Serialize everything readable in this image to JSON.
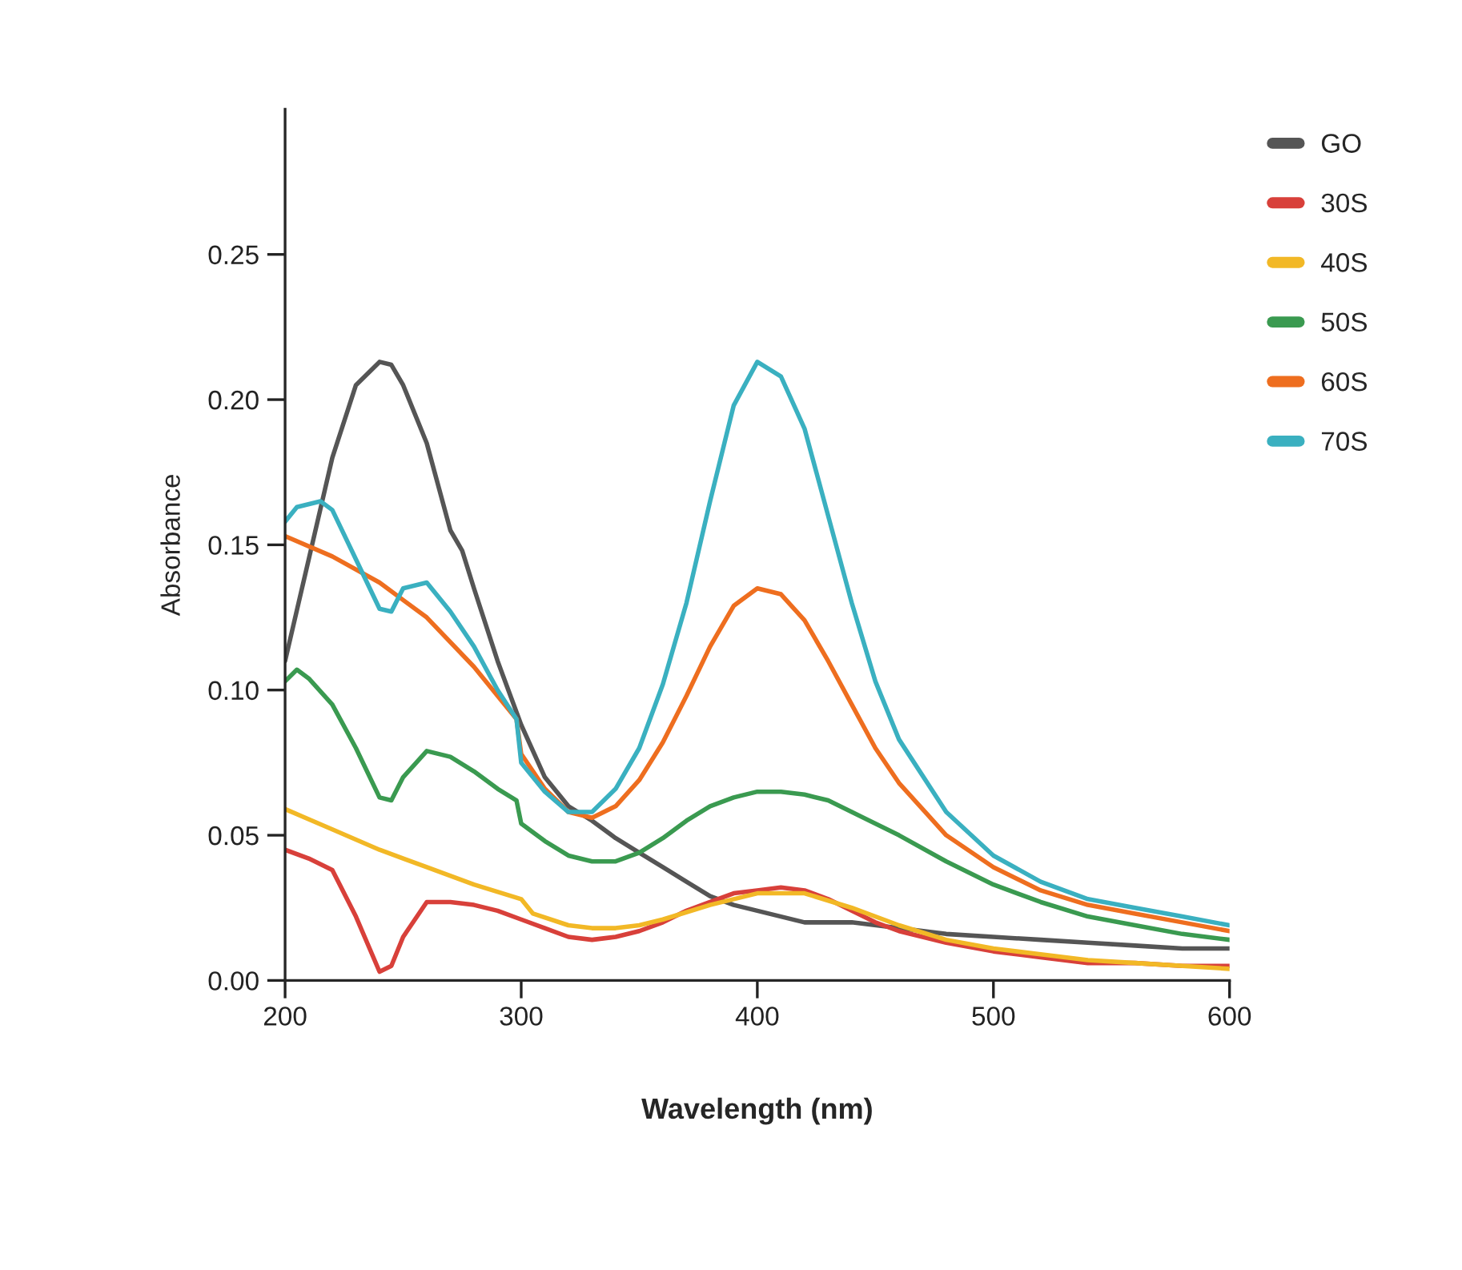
{
  "chart_data": {
    "type": "line",
    "xlabel": "Wavelength (nm)",
    "ylabel": "Absorbance",
    "xlim": [
      200,
      600
    ],
    "ylim": [
      0,
      0.3
    ],
    "xticks": [
      200,
      300,
      400,
      500,
      600
    ],
    "yticks": [
      {
        "value": 0,
        "label": "0.00"
      },
      {
        "value": 0.05,
        "label": "0.05"
      },
      {
        "value": 0.1,
        "label": "0.10"
      },
      {
        "value": 0.15,
        "label": "0.15"
      },
      {
        "value": 0.2,
        "label": "0.20"
      },
      {
        "value": 0.25,
        "label": "0.25"
      }
    ],
    "grid": false,
    "legend": "top right",
    "line_style": "solid",
    "series": [
      {
        "name": "GO",
        "color": "#555555",
        "x": [
          200,
          210,
          220,
          230,
          240,
          245,
          250,
          260,
          270,
          275,
          280,
          290,
          300,
          310,
          320,
          330,
          340,
          350,
          360,
          370,
          380,
          390,
          400,
          420,
          440,
          460,
          480,
          500,
          520,
          540,
          560,
          580,
          600
        ],
        "values": [
          0.11,
          0.145,
          0.18,
          0.205,
          0.213,
          0.212,
          0.205,
          0.185,
          0.155,
          0.148,
          0.135,
          0.11,
          0.088,
          0.07,
          0.06,
          0.055,
          0.049,
          0.044,
          0.039,
          0.034,
          0.029,
          0.026,
          0.024,
          0.02,
          0.02,
          0.018,
          0.016,
          0.015,
          0.014,
          0.013,
          0.012,
          0.011,
          0.011
        ]
      },
      {
        "name": "30S",
        "color": "#d8403a",
        "x": [
          200,
          210,
          220,
          230,
          240,
          245,
          250,
          260,
          270,
          280,
          290,
          300,
          310,
          320,
          330,
          340,
          350,
          360,
          370,
          380,
          390,
          400,
          410,
          420,
          430,
          440,
          450,
          460,
          480,
          500,
          520,
          540,
          560,
          580,
          600
        ],
        "values": [
          0.045,
          0.042,
          0.038,
          0.022,
          0.003,
          0.005,
          0.015,
          0.027,
          0.027,
          0.026,
          0.024,
          0.021,
          0.018,
          0.015,
          0.014,
          0.015,
          0.017,
          0.02,
          0.024,
          0.027,
          0.03,
          0.031,
          0.032,
          0.031,
          0.028,
          0.024,
          0.02,
          0.017,
          0.013,
          0.01,
          0.008,
          0.006,
          0.006,
          0.005,
          0.005
        ]
      },
      {
        "name": "40S",
        "color": "#f2b826",
        "x": [
          200,
          220,
          240,
          260,
          280,
          300,
          305,
          320,
          330,
          340,
          350,
          360,
          380,
          400,
          420,
          440,
          460,
          480,
          500,
          520,
          540,
          560,
          580,
          600
        ],
        "values": [
          0.059,
          0.052,
          0.045,
          0.039,
          0.033,
          0.028,
          0.023,
          0.019,
          0.018,
          0.018,
          0.019,
          0.021,
          0.026,
          0.03,
          0.03,
          0.025,
          0.019,
          0.014,
          0.011,
          0.009,
          0.007,
          0.006,
          0.005,
          0.004
        ]
      },
      {
        "name": "50S",
        "color": "#3a9a50",
        "x": [
          200,
          205,
          210,
          220,
          230,
          240,
          245,
          250,
          260,
          270,
          280,
          290,
          298,
          300,
          310,
          320,
          330,
          340,
          350,
          360,
          370,
          380,
          390,
          400,
          410,
          420,
          430,
          440,
          460,
          480,
          500,
          520,
          540,
          560,
          580,
          600
        ],
        "values": [
          0.103,
          0.107,
          0.104,
          0.095,
          0.08,
          0.063,
          0.062,
          0.07,
          0.079,
          0.077,
          0.072,
          0.066,
          0.062,
          0.054,
          0.048,
          0.043,
          0.041,
          0.041,
          0.044,
          0.049,
          0.055,
          0.06,
          0.063,
          0.065,
          0.065,
          0.064,
          0.062,
          0.058,
          0.05,
          0.041,
          0.033,
          0.027,
          0.022,
          0.019,
          0.016,
          0.014
        ]
      },
      {
        "name": "60S",
        "color": "#ee6e1f",
        "x": [
          200,
          220,
          240,
          260,
          280,
          298,
          300,
          310,
          320,
          330,
          340,
          350,
          360,
          370,
          380,
          390,
          400,
          410,
          420,
          430,
          440,
          450,
          460,
          480,
          500,
          520,
          540,
          560,
          580,
          600
        ],
        "values": [
          0.153,
          0.146,
          0.137,
          0.125,
          0.108,
          0.09,
          0.078,
          0.066,
          0.058,
          0.056,
          0.06,
          0.069,
          0.082,
          0.098,
          0.115,
          0.129,
          0.135,
          0.133,
          0.124,
          0.11,
          0.095,
          0.08,
          0.068,
          0.05,
          0.039,
          0.031,
          0.026,
          0.023,
          0.02,
          0.017
        ]
      },
      {
        "name": "70S",
        "color": "#3ab0c0",
        "x": [
          200,
          205,
          215,
          220,
          230,
          240,
          245,
          250,
          260,
          270,
          280,
          290,
          298,
          300,
          310,
          320,
          330,
          340,
          350,
          360,
          370,
          380,
          390,
          400,
          410,
          420,
          430,
          440,
          450,
          460,
          480,
          500,
          520,
          540,
          560,
          580,
          600
        ],
        "values": [
          0.158,
          0.163,
          0.165,
          0.162,
          0.145,
          0.128,
          0.127,
          0.135,
          0.137,
          0.127,
          0.115,
          0.1,
          0.09,
          0.075,
          0.065,
          0.058,
          0.058,
          0.066,
          0.08,
          0.102,
          0.13,
          0.165,
          0.198,
          0.213,
          0.208,
          0.19,
          0.16,
          0.13,
          0.103,
          0.083,
          0.058,
          0.043,
          0.034,
          0.028,
          0.025,
          0.022,
          0.019
        ]
      }
    ]
  }
}
